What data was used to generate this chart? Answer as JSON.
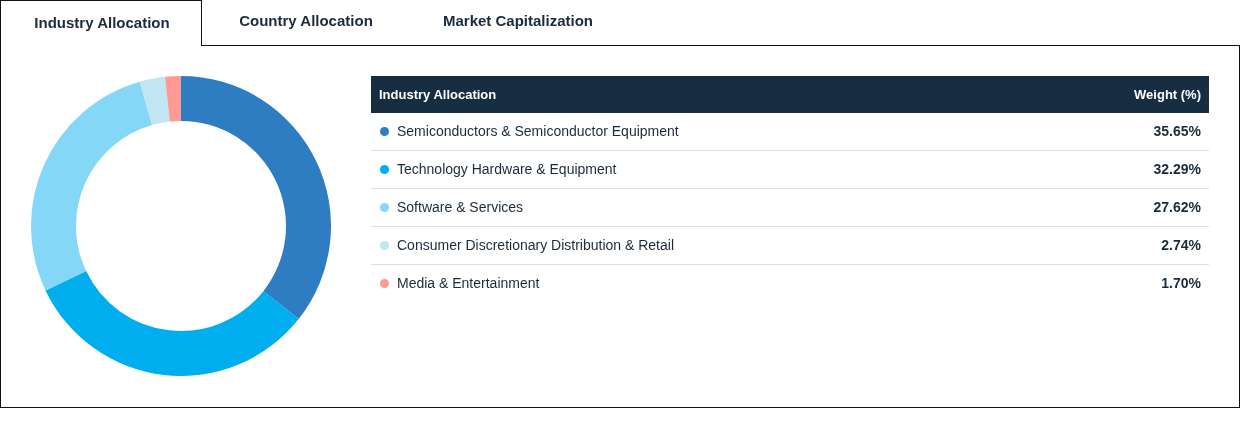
{
  "chart_data": {
    "type": "donut",
    "title": "Industry Allocation",
    "legend_title": "Industry Allocation",
    "annotations": [
      "Country Allocation",
      "Market Capitalization",
      "Weight (%)"
    ],
    "categories": [
      "Semiconductors & Semiconductor Equipment",
      "Technology Hardware & Equipment",
      "Software & Services",
      "Consumer Discretionary Distribution & Retail",
      "Media & Entertainment"
    ],
    "values": [
      35.65,
      32.29,
      27.62,
      2.74,
      1.7
    ],
    "colors": [
      "#2e7dc2",
      "#00aeef",
      "#84d7f7",
      "#bfe6f1",
      "#fe9a93"
    ],
    "value_labels": [
      "35.65%",
      "32.29%",
      "27.62%",
      "2.74%",
      "1.70%"
    ],
    "legend": "right"
  }
}
